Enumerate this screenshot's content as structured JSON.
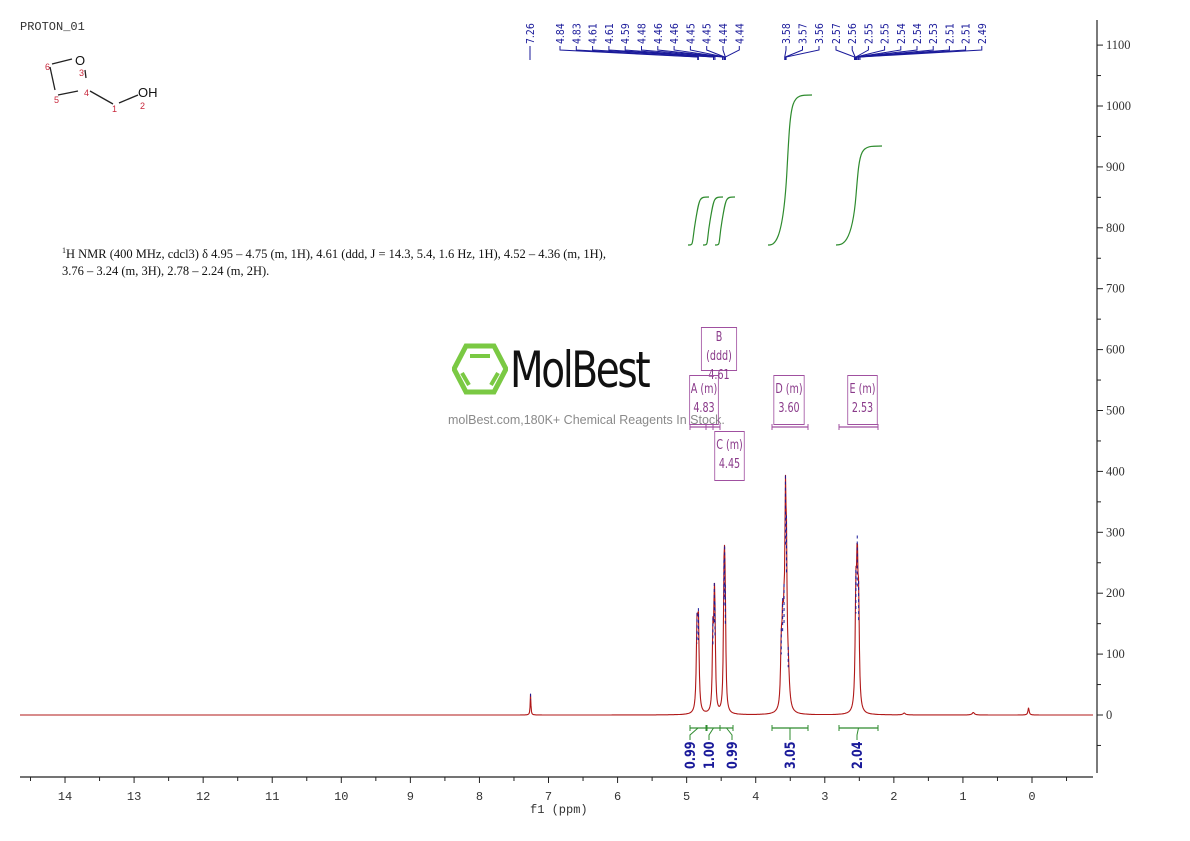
{
  "header": {
    "title": "PROTON_01"
  },
  "molecule": {
    "atoms": [
      {
        "label": "O",
        "index": "3"
      },
      {
        "label": "OH",
        "index": "2"
      }
    ],
    "indices": [
      "1",
      "2",
      "3",
      "4",
      "5",
      "6"
    ]
  },
  "nmr_description": {
    "prefix_sup": "1",
    "text": "H NMR (400 MHz, cdcl3) δ 4.95 – 4.75 (m, 1H), 4.61 (ddd, J = 14.3, 5.4, 1.6 Hz, 1H), 4.52 – 4.36 (m, 1H), 3.76 – 3.24 (m, 3H), 2.78 – 2.24 (m, 2H)."
  },
  "watermark": {
    "brand": "MolBest",
    "tagline": "molBest.com,180K+ Chemical Reagents In Stock."
  },
  "colors": {
    "spectrum": "#b01818",
    "peak_markers": "#1a1a9a",
    "integral": "#2e8b2e",
    "multiplet_box": "#a050a0",
    "logo_green": "#7ac943"
  },
  "chart_data": {
    "type": "line",
    "title": "PROTON_01",
    "xlabel": "f1 (ppm)",
    "ylabel": "",
    "xlim": [
      14.6,
      -0.9
    ],
    "ylim": [
      -100,
      1150
    ],
    "x_ticks": [
      "14",
      "13",
      "12",
      "11",
      "10",
      "9",
      "8",
      "7",
      "6",
      "5",
      "4",
      "3",
      "2",
      "1",
      "0"
    ],
    "y_ticks": [
      "0",
      "100",
      "200",
      "300",
      "400",
      "500",
      "600",
      "700",
      "800",
      "900",
      "1000",
      "1100"
    ],
    "grid": false,
    "peak_labels_group1": [
      "7.26",
      "4.84",
      "4.83",
      "4.61",
      "4.61",
      "4.59",
      "4.48",
      "4.46",
      "4.46",
      "4.45",
      "4.45",
      "4.44",
      "4.44"
    ],
    "peak_labels_group2": [
      "3.58",
      "3.57",
      "3.56",
      "2.57",
      "2.56",
      "2.55",
      "2.55",
      "2.54",
      "2.54",
      "2.53",
      "2.51",
      "2.51",
      "2.49"
    ],
    "peaks": [
      {
        "ppm": 7.26,
        "intensity": 35
      },
      {
        "ppm": 4.84,
        "intensity": 150
      },
      {
        "ppm": 4.61,
        "intensity": 155
      },
      {
        "ppm": 4.45,
        "intensity": 175
      },
      {
        "ppm": 3.6,
        "intensity": 125
      },
      {
        "ppm": 3.57,
        "intensity": 300
      },
      {
        "ppm": 2.53,
        "intensity": 230
      },
      {
        "ppm": 0.05,
        "intensity": 12
      }
    ],
    "multiplets": [
      {
        "label": "A (m)",
        "shift": "4.83"
      },
      {
        "label": "B (ddd)",
        "shift": "4.61"
      },
      {
        "label": "C (m)",
        "shift": "4.45"
      },
      {
        "label": "D (m)",
        "shift": "3.60"
      },
      {
        "label": "E (m)",
        "shift": "2.53"
      }
    ],
    "integrals": [
      {
        "range": [
          4.95,
          4.75
        ],
        "value": "0.99"
      },
      {
        "range": [
          4.7,
          4.55
        ],
        "value": "1.00"
      },
      {
        "range": [
          4.52,
          4.36
        ],
        "value": "0.99"
      },
      {
        "range": [
          3.76,
          3.24
        ],
        "value": "3.05"
      },
      {
        "range": [
          2.78,
          2.24
        ],
        "value": "2.04"
      }
    ]
  }
}
